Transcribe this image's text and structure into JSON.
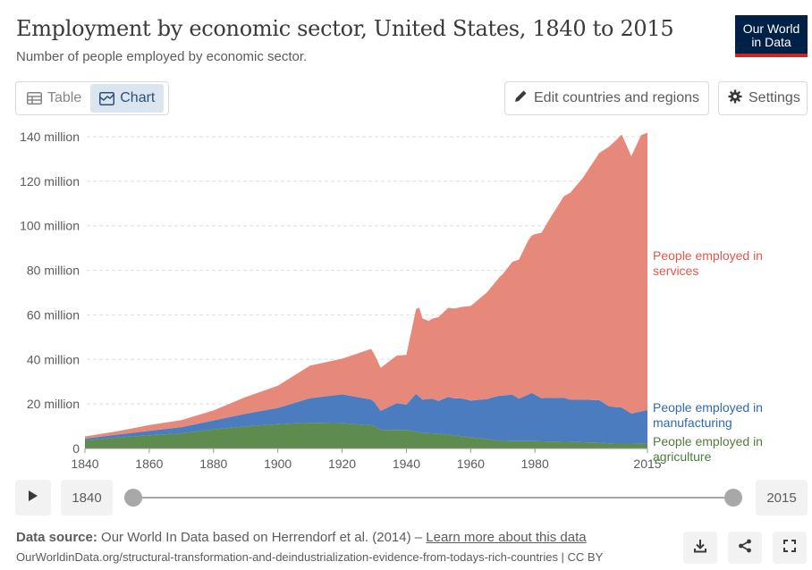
{
  "header": {
    "title": "Employment by economic sector, United States, 1840 to 2015",
    "subtitle": "Number of people employed by economic sector.",
    "logo_line1": "Our World",
    "logo_line2": "in Data"
  },
  "controls": {
    "tab_table": "Table",
    "tab_chart": "Chart",
    "edit_button": "Edit countries and regions",
    "settings_button": "Settings"
  },
  "timeline": {
    "start_year": "1840",
    "end_year": "2015"
  },
  "footer": {
    "source_label": "Data source:",
    "source_text": "Our World In Data based on Herrendorf et al. (2014) –",
    "learn_more": "Learn more about this data",
    "url_line": "OurWorldinData.org/structural-transformation-and-deindustrialization-evidence-from-todays-rich-countries | CC BY"
  },
  "chart_data": {
    "type": "area",
    "stacked": true,
    "xlim": [
      1840,
      2015
    ],
    "ylim": [
      0,
      140000000
    ],
    "grid": true,
    "x_ticks": [
      1840,
      1860,
      1880,
      1900,
      1920,
      1940,
      1960,
      1980,
      2015
    ],
    "y_ticks": [
      {
        "value": 0,
        "label": "0"
      },
      {
        "value": 20000000,
        "label": "20 million"
      },
      {
        "value": 40000000,
        "label": "40 million"
      },
      {
        "value": 60000000,
        "label": "60 million"
      },
      {
        "value": 80000000,
        "label": "80 million"
      },
      {
        "value": 100000000,
        "label": "100 million"
      },
      {
        "value": 120000000,
        "label": "120 million"
      },
      {
        "value": 140000000,
        "label": "140 million"
      }
    ],
    "series": [
      {
        "name": "People employed in agriculture",
        "label_lines": [
          "People employed in",
          "agriculture"
        ],
        "color": "#5e8b4e",
        "points": [
          [
            1840,
            3.6
          ],
          [
            1850,
            4.9
          ],
          [
            1860,
            5.9
          ],
          [
            1870,
            6.8
          ],
          [
            1880,
            8.6
          ],
          [
            1890,
            9.9
          ],
          [
            1900,
            10.9
          ],
          [
            1910,
            11.6
          ],
          [
            1920,
            11.4
          ],
          [
            1930,
            10.3
          ],
          [
            1932,
            8.4
          ],
          [
            1940,
            8.3
          ],
          [
            1945,
            7.0
          ],
          [
            1950,
            6.6
          ],
          [
            1955,
            5.9
          ],
          [
            1960,
            5.0
          ],
          [
            1965,
            4.2
          ],
          [
            1970,
            3.4
          ],
          [
            1975,
            3.3
          ],
          [
            1980,
            3.3
          ],
          [
            1985,
            3.1
          ],
          [
            1990,
            3.0
          ],
          [
            1995,
            2.8
          ],
          [
            2000,
            2.6
          ],
          [
            2005,
            2.2
          ],
          [
            2010,
            2.2
          ],
          [
            2015,
            2.4
          ]
        ]
      },
      {
        "name": "People employed in manufacturing",
        "label_lines": [
          "People employed in",
          "manufacturing"
        ],
        "color": "#4b7cbf",
        "points": [
          [
            1840,
            0.8
          ],
          [
            1850,
            1.3
          ],
          [
            1860,
            2.0
          ],
          [
            1870,
            2.8
          ],
          [
            1880,
            4.0
          ],
          [
            1890,
            5.7
          ],
          [
            1900,
            7.3
          ],
          [
            1910,
            11.0
          ],
          [
            1920,
            12.9
          ],
          [
            1929,
            11.6
          ],
          [
            1932,
            8.5
          ],
          [
            1937,
            12.0
          ],
          [
            1940,
            11.4
          ],
          [
            1943,
            17.0
          ],
          [
            1945,
            15.0
          ],
          [
            1948,
            15.6
          ],
          [
            1950,
            14.8
          ],
          [
            1953,
            17.0
          ],
          [
            1955,
            16.6
          ],
          [
            1957,
            17.0
          ],
          [
            1960,
            16.5
          ],
          [
            1965,
            18.0
          ],
          [
            1969,
            20.2
          ],
          [
            1973,
            20.9
          ],
          [
            1975,
            19.1
          ],
          [
            1979,
            21.6
          ],
          [
            1982,
            19.4
          ],
          [
            1985,
            19.6
          ],
          [
            1989,
            19.8
          ],
          [
            1991,
            18.9
          ],
          [
            1995,
            19.1
          ],
          [
            2000,
            19.1
          ],
          [
            2003,
            16.6
          ],
          [
            2007,
            16.2
          ],
          [
            2010,
            13.5
          ],
          [
            2015,
            14.9
          ]
        ]
      },
      {
        "name": "People employed in services",
        "label_lines": [
          "People employed in",
          "services"
        ],
        "color": "#e6887a",
        "points": [
          [
            1840,
            1.0
          ],
          [
            1850,
            1.5
          ],
          [
            1860,
            2.6
          ],
          [
            1870,
            3.1
          ],
          [
            1880,
            4.5
          ],
          [
            1890,
            7.5
          ],
          [
            1900,
            10.0
          ],
          [
            1910,
            14.6
          ],
          [
            1920,
            16.0
          ],
          [
            1929,
            22.7
          ],
          [
            1932,
            19.3
          ],
          [
            1937,
            21.4
          ],
          [
            1940,
            22.3
          ],
          [
            1943,
            38.0
          ],
          [
            1944,
            40.0
          ],
          [
            1945,
            36.4
          ],
          [
            1947,
            35.0
          ],
          [
            1950,
            37.6
          ],
          [
            1953,
            40.0
          ],
          [
            1955,
            40.3
          ],
          [
            1957,
            41.0
          ],
          [
            1960,
            42.5
          ],
          [
            1965,
            47.8
          ],
          [
            1970,
            54.6
          ],
          [
            1973,
            59.6
          ],
          [
            1975,
            62.4
          ],
          [
            1978,
            69.4
          ],
          [
            1980,
            72.1
          ],
          [
            1982,
            74.2
          ],
          [
            1985,
            81.4
          ],
          [
            1989,
            90.4
          ],
          [
            1991,
            93.0
          ],
          [
            1995,
            99.8
          ],
          [
            2000,
            111.0
          ],
          [
            2003,
            116.5
          ],
          [
            2007,
            122.6
          ],
          [
            2010,
            115.5
          ],
          [
            2013,
            124.0
          ],
          [
            2015,
            124.5
          ]
        ]
      }
    ]
  }
}
